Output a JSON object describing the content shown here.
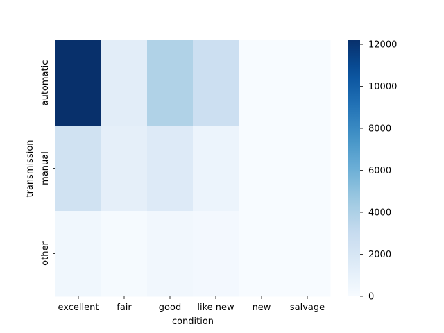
{
  "chart_data": {
    "type": "heatmap",
    "title": "",
    "xlabel": "condition",
    "ylabel": "transmission",
    "x_categories": [
      "excellent",
      "fair",
      "good",
      "like new",
      "new",
      "salvage"
    ],
    "y_categories": [
      "automatic",
      "manual",
      "other"
    ],
    "values": [
      [
        12200,
        1300,
        3900,
        2700,
        30,
        10
      ],
      [
        2400,
        1100,
        1600,
        650,
        5,
        3
      ],
      [
        400,
        100,
        350,
        250,
        2,
        1
      ]
    ],
    "colorbar": {
      "min": 0,
      "max": 12200,
      "ticks": [
        0,
        2000,
        4000,
        6000,
        8000,
        10000,
        12000
      ],
      "tick_labels": [
        "0",
        "2000",
        "4000",
        "6000",
        "8000",
        "10000",
        "12000"
      ],
      "colormap": "Blues",
      "color_light": "#f7fbff",
      "color_dark": "#08306b"
    }
  }
}
